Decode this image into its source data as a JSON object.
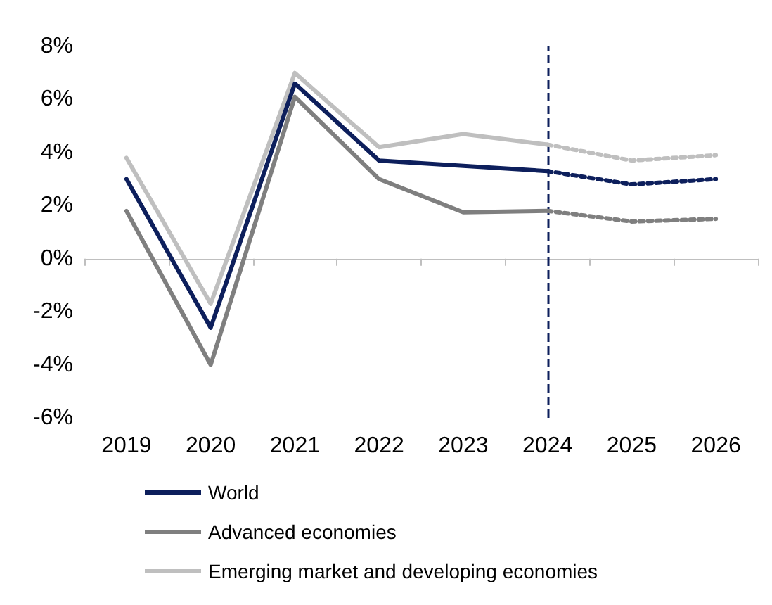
{
  "chart_data": {
    "type": "line",
    "categories": [
      "2019",
      "2020",
      "2021",
      "2022",
      "2023",
      "2024",
      "2025",
      "2026"
    ],
    "series": [
      {
        "name": "World",
        "color": "#0d1f5c",
        "values": [
          3.0,
          -2.6,
          6.6,
          3.7,
          3.5,
          3.3,
          null,
          null
        ]
      },
      {
        "name": "Advanced economies",
        "color": "#7f7f7f",
        "values": [
          1.8,
          -4.0,
          6.1,
          3.0,
          1.75,
          1.8,
          null,
          null
        ]
      },
      {
        "name": "Emerging market and developing economies",
        "color": "#bfbfbf",
        "values": [
          3.8,
          -1.7,
          7.0,
          4.2,
          4.7,
          4.3,
          null,
          null
        ]
      },
      {
        "color": "#0d1f5c",
        "line_style": "dotted",
        "values": [
          null,
          null,
          null,
          null,
          null,
          3.3,
          2.8,
          3.0
        ]
      },
      {
        "color": "#7f7f7f",
        "line_style": "dotted",
        "values": [
          null,
          null,
          null,
          null,
          null,
          1.8,
          1.4,
          1.5
        ]
      },
      {
        "color": "#bfbfbf",
        "line_style": "dotted",
        "values": [
          null,
          null,
          null,
          null,
          null,
          4.3,
          3.7,
          3.9
        ]
      }
    ],
    "ylim": [
      -6,
      8
    ],
    "yticks": [
      {
        "value": -6,
        "label": "-6%"
      },
      {
        "value": -4,
        "label": "-4%"
      },
      {
        "value": -2,
        "label": "-2%"
      },
      {
        "value": 0,
        "label": "0%"
      },
      {
        "value": 2,
        "label": "2%"
      },
      {
        "value": 4,
        "label": "4%"
      },
      {
        "value": 6,
        "label": "6%"
      },
      {
        "value": 8,
        "label": "8%"
      }
    ],
    "ref_lines": [
      {
        "axis": "x",
        "value": "2024",
        "color": "#0d1f5c",
        "line_style": "dashed"
      }
    ],
    "legend": "bottom",
    "grid": false,
    "marker": "none",
    "line_style": "solid"
  }
}
